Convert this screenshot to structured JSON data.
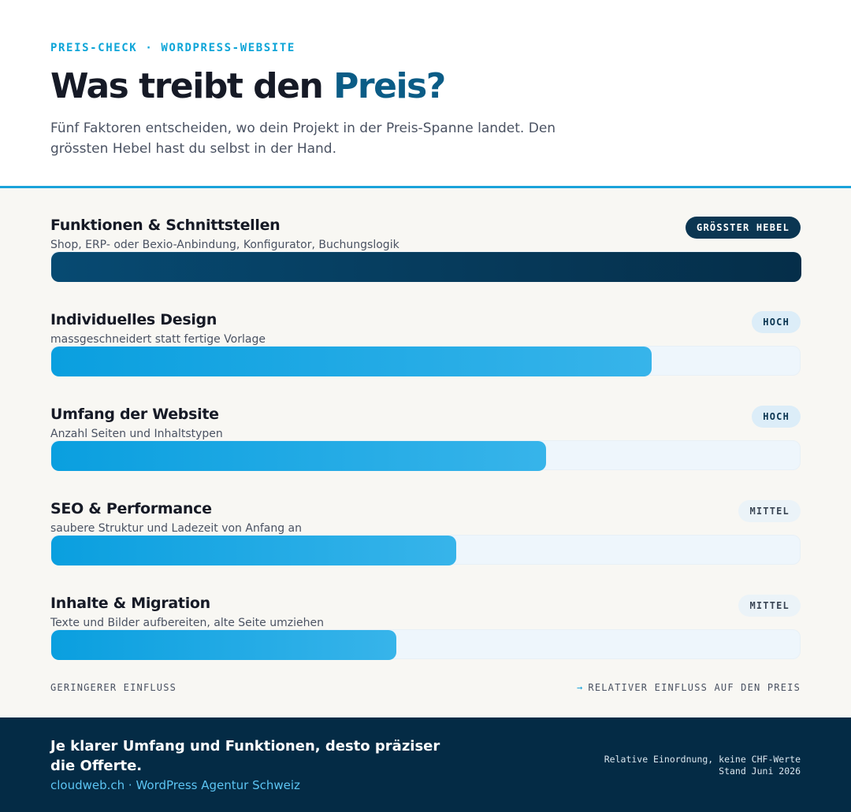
{
  "header": {
    "eyebrow": "PREIS-CHECK · WORDPRESS-WEBSITE",
    "title_main": "Was treibt den ",
    "title_accent": "Preis?",
    "subtitle": "Fünf Faktoren entscheiden, wo dein Projekt in der Preis-Spanne landet. Den grössten Hebel hast du selbst in der Hand."
  },
  "colors": {
    "accent": "#1aa3da",
    "dark": "#042b45",
    "bar_light": "#0a9fdf"
  },
  "chart_data": {
    "type": "bar",
    "orientation": "horizontal",
    "xlim": [
      0,
      100
    ],
    "categories": [
      "Funktionen & Schnittstellen",
      "Individuelles Design",
      "Umfang der Website",
      "SEO & Performance",
      "Inhalte & Migration"
    ],
    "descriptions": [
      "Shop, ERP- oder Bexio-Anbindung, Konfigurator, Buchungslogik",
      "massgeschneidert statt fertige Vorlage",
      "Anzahl Seiten und Inhaltstypen",
      "saubere Struktur und Ladezeit von Anfang an",
      "Texte und Bilder aufbereiten, alte Seite umziehen"
    ],
    "badges": [
      "GRÖSSTER HEBEL",
      "HOCH",
      "HOCH",
      "MITTEL",
      "MITTEL"
    ],
    "values": [
      100,
      80,
      66,
      54,
      46
    ],
    "axis_left_label": "GERINGERER EINFLUSS",
    "axis_right_label": "RELATIVER EINFLUSS AUF DEN PREIS",
    "axis_arrow": "→"
  },
  "footer": {
    "headline": "Je klarer Umfang und Funktionen, desto präziser die Offerte.",
    "link": "cloudweb.ch · WordPress Agentur Schweiz",
    "meta_line1": "Relative Einordnung, keine CHF-Werte",
    "meta_line2": "Stand Juni 2026"
  }
}
